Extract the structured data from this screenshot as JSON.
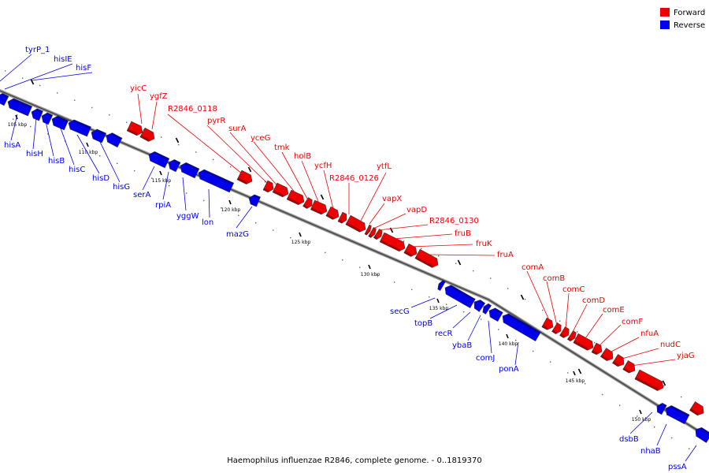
{
  "colors": {
    "forward": "#ee0000",
    "reverse": "#0000ee",
    "backbone": "#666666"
  },
  "legend": {
    "forward": "Forward",
    "reverse": "Reverse"
  },
  "caption": "Haemophilus influenzae R2846, complete genome. - 0..1819370",
  "ticks": [
    "105 kbp",
    "110 kbp",
    "115 kbp",
    "120 kbp",
    "125 kbp",
    "130 kbp",
    "135 kbp",
    "140 kbp",
    "145 kbp",
    "150 kbp"
  ],
  "forward_genes": [
    "yicC",
    "ygfZ",
    "R2846_0118",
    "pyrR",
    "surA",
    "yceG",
    "tmk",
    "holB",
    "ycfH",
    "R2846_0126",
    "ytfL",
    "vapX",
    "vapD",
    "R2846_0130",
    "fruB",
    "fruK",
    "fruA",
    "comA",
    "comB",
    "comC",
    "comD",
    "comE",
    "comF",
    "nfuA",
    "nudC",
    "yjaG"
  ],
  "reverse_genes": [
    "tyrP_1",
    "hisIE",
    "hisF",
    "hisA",
    "hisH",
    "hisB",
    "hisC",
    "hisD",
    "hisG",
    "serA",
    "rpiA",
    "yggW",
    "lon",
    "mazG",
    "secG",
    "topB",
    "recR",
    "ybaB",
    "comJ",
    "ponA",
    "dsbB",
    "nhaB",
    "pssA"
  ]
}
